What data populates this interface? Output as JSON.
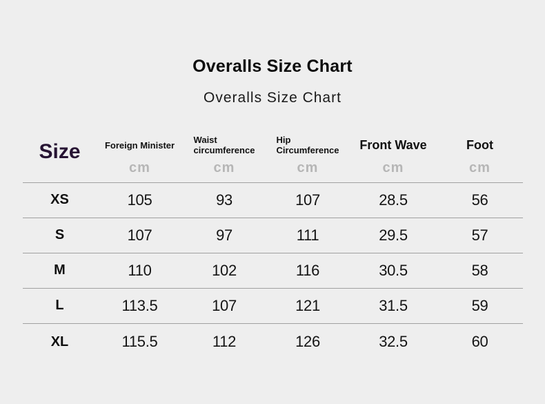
{
  "header": {
    "title": "Overalls Size Chart",
    "subtitle": "Overalls Size Chart"
  },
  "table": {
    "size_header": "Size",
    "unit": "cm",
    "columns": [
      {
        "line1": "Foreign Minister",
        "line2": "",
        "size": "small"
      },
      {
        "line1": "Waist",
        "line2": "circumference",
        "size": "small"
      },
      {
        "line1": "Hip",
        "line2": "Circumference",
        "size": "small"
      },
      {
        "line1": "Front Wave",
        "line2": "",
        "size": "large"
      },
      {
        "line1": "Foot",
        "line2": "",
        "size": "large"
      }
    ],
    "rows": [
      {
        "size": "XS",
        "values": [
          "105",
          "93",
          "107",
          "28.5",
          "56"
        ]
      },
      {
        "size": "S",
        "values": [
          "107",
          "97",
          "111",
          "29.5",
          "57"
        ]
      },
      {
        "size": "M",
        "values": [
          "110",
          "102",
          "116",
          "30.5",
          "58"
        ]
      },
      {
        "size": "L",
        "values": [
          "113.5",
          "107",
          "121",
          "31.5",
          "59"
        ]
      },
      {
        "size": "XL",
        "values": [
          "115.5",
          "112",
          "126",
          "32.5",
          "60"
        ]
      }
    ]
  },
  "colors": {
    "background": "#eeeeee",
    "text": "#141414",
    "size_header_accent": "#271433",
    "unit_gray": "#b6b6b6",
    "divider": "#a0a0a0"
  },
  "chart_data": {
    "type": "table",
    "title": "Overalls Size Chart",
    "subtitle": "Overalls Size Chart",
    "columns": [
      "Size",
      "Foreign Minister (cm)",
      "Waist circumference (cm)",
      "Hip Circumference (cm)",
      "Front Wave (cm)",
      "Foot (cm)"
    ],
    "rows": [
      [
        "XS",
        105,
        93,
        107,
        28.5,
        56
      ],
      [
        "S",
        107,
        97,
        111,
        29.5,
        57
      ],
      [
        "M",
        110,
        102,
        116,
        30.5,
        58
      ],
      [
        "L",
        113.5,
        107,
        121,
        31.5,
        59
      ],
      [
        "XL",
        115.5,
        112,
        126,
        32.5,
        60
      ]
    ]
  }
}
